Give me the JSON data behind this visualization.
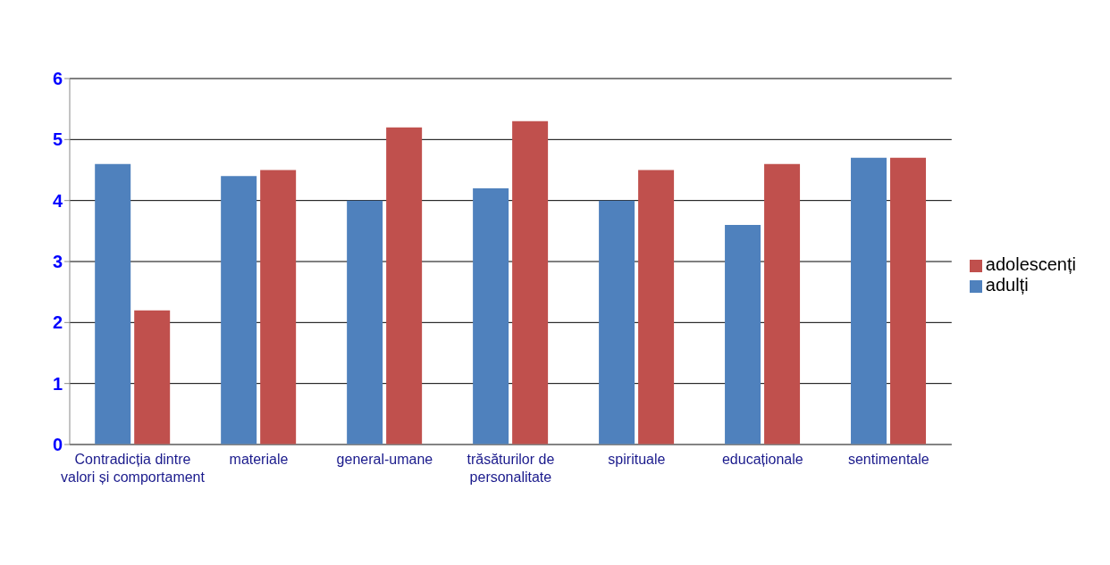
{
  "chart_data": {
    "type": "bar",
    "categories": [
      "Contradicția dintre valori și comportament",
      "materiale",
      "general-umane",
      "trăsăturilor de personalitate",
      "spirituale",
      "educaționale",
      "sentimentale"
    ],
    "series": [
      {
        "name": "adulți",
        "color": "#4f81bd",
        "values": [
          4.6,
          4.4,
          4.0,
          4.2,
          4.0,
          3.6,
          4.7
        ]
      },
      {
        "name": "adolescenți",
        "color": "#c0504d",
        "values": [
          2.2,
          4.5,
          5.2,
          5.3,
          4.5,
          4.6,
          4.7
        ]
      }
    ],
    "ylim": [
      0,
      6
    ],
    "yticks": [
      0,
      1,
      2,
      3,
      4,
      5,
      6
    ],
    "grid": "y",
    "legend": "right"
  }
}
